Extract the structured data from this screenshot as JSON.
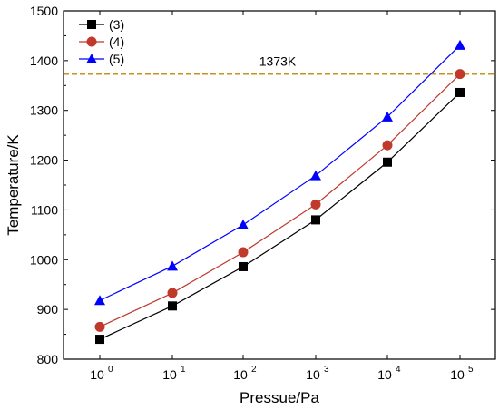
{
  "chart_data": {
    "type": "line",
    "title": "",
    "xlabel": "Pressue/Pa",
    "ylabel": "Temperature/K",
    "x_scale": "log",
    "x": [
      1,
      10,
      100,
      1000,
      10000,
      100000
    ],
    "x_tick_labels": [
      {
        "base": "10",
        "exp": "0"
      },
      {
        "base": "10",
        "exp": "1"
      },
      {
        "base": "10",
        "exp": "2"
      },
      {
        "base": "10",
        "exp": "3"
      },
      {
        "base": "10",
        "exp": "4"
      },
      {
        "base": "10",
        "exp": "5"
      }
    ],
    "ylim": [
      800,
      1500
    ],
    "y_ticks": [
      800,
      900,
      1000,
      1100,
      1200,
      1300,
      1400,
      1500
    ],
    "grid": false,
    "legend_position": "top-left",
    "series": [
      {
        "name": "(3)",
        "color": "#000000",
        "marker": "square",
        "values": [
          840,
          907,
          986,
          1080,
          1196,
          1336
        ]
      },
      {
        "name": "(4)",
        "color": "#c0392b",
        "marker": "circle",
        "values": [
          865,
          933,
          1015,
          1111,
          1230,
          1373
        ]
      },
      {
        "name": "(5)",
        "color": "#0000ff",
        "marker": "triangle",
        "values": [
          918,
          987,
          1070,
          1169,
          1287,
          1431
        ]
      }
    ],
    "reference_line": {
      "y": 1373,
      "label": "1373K",
      "color": "#c8901e",
      "style": "dashed"
    }
  }
}
